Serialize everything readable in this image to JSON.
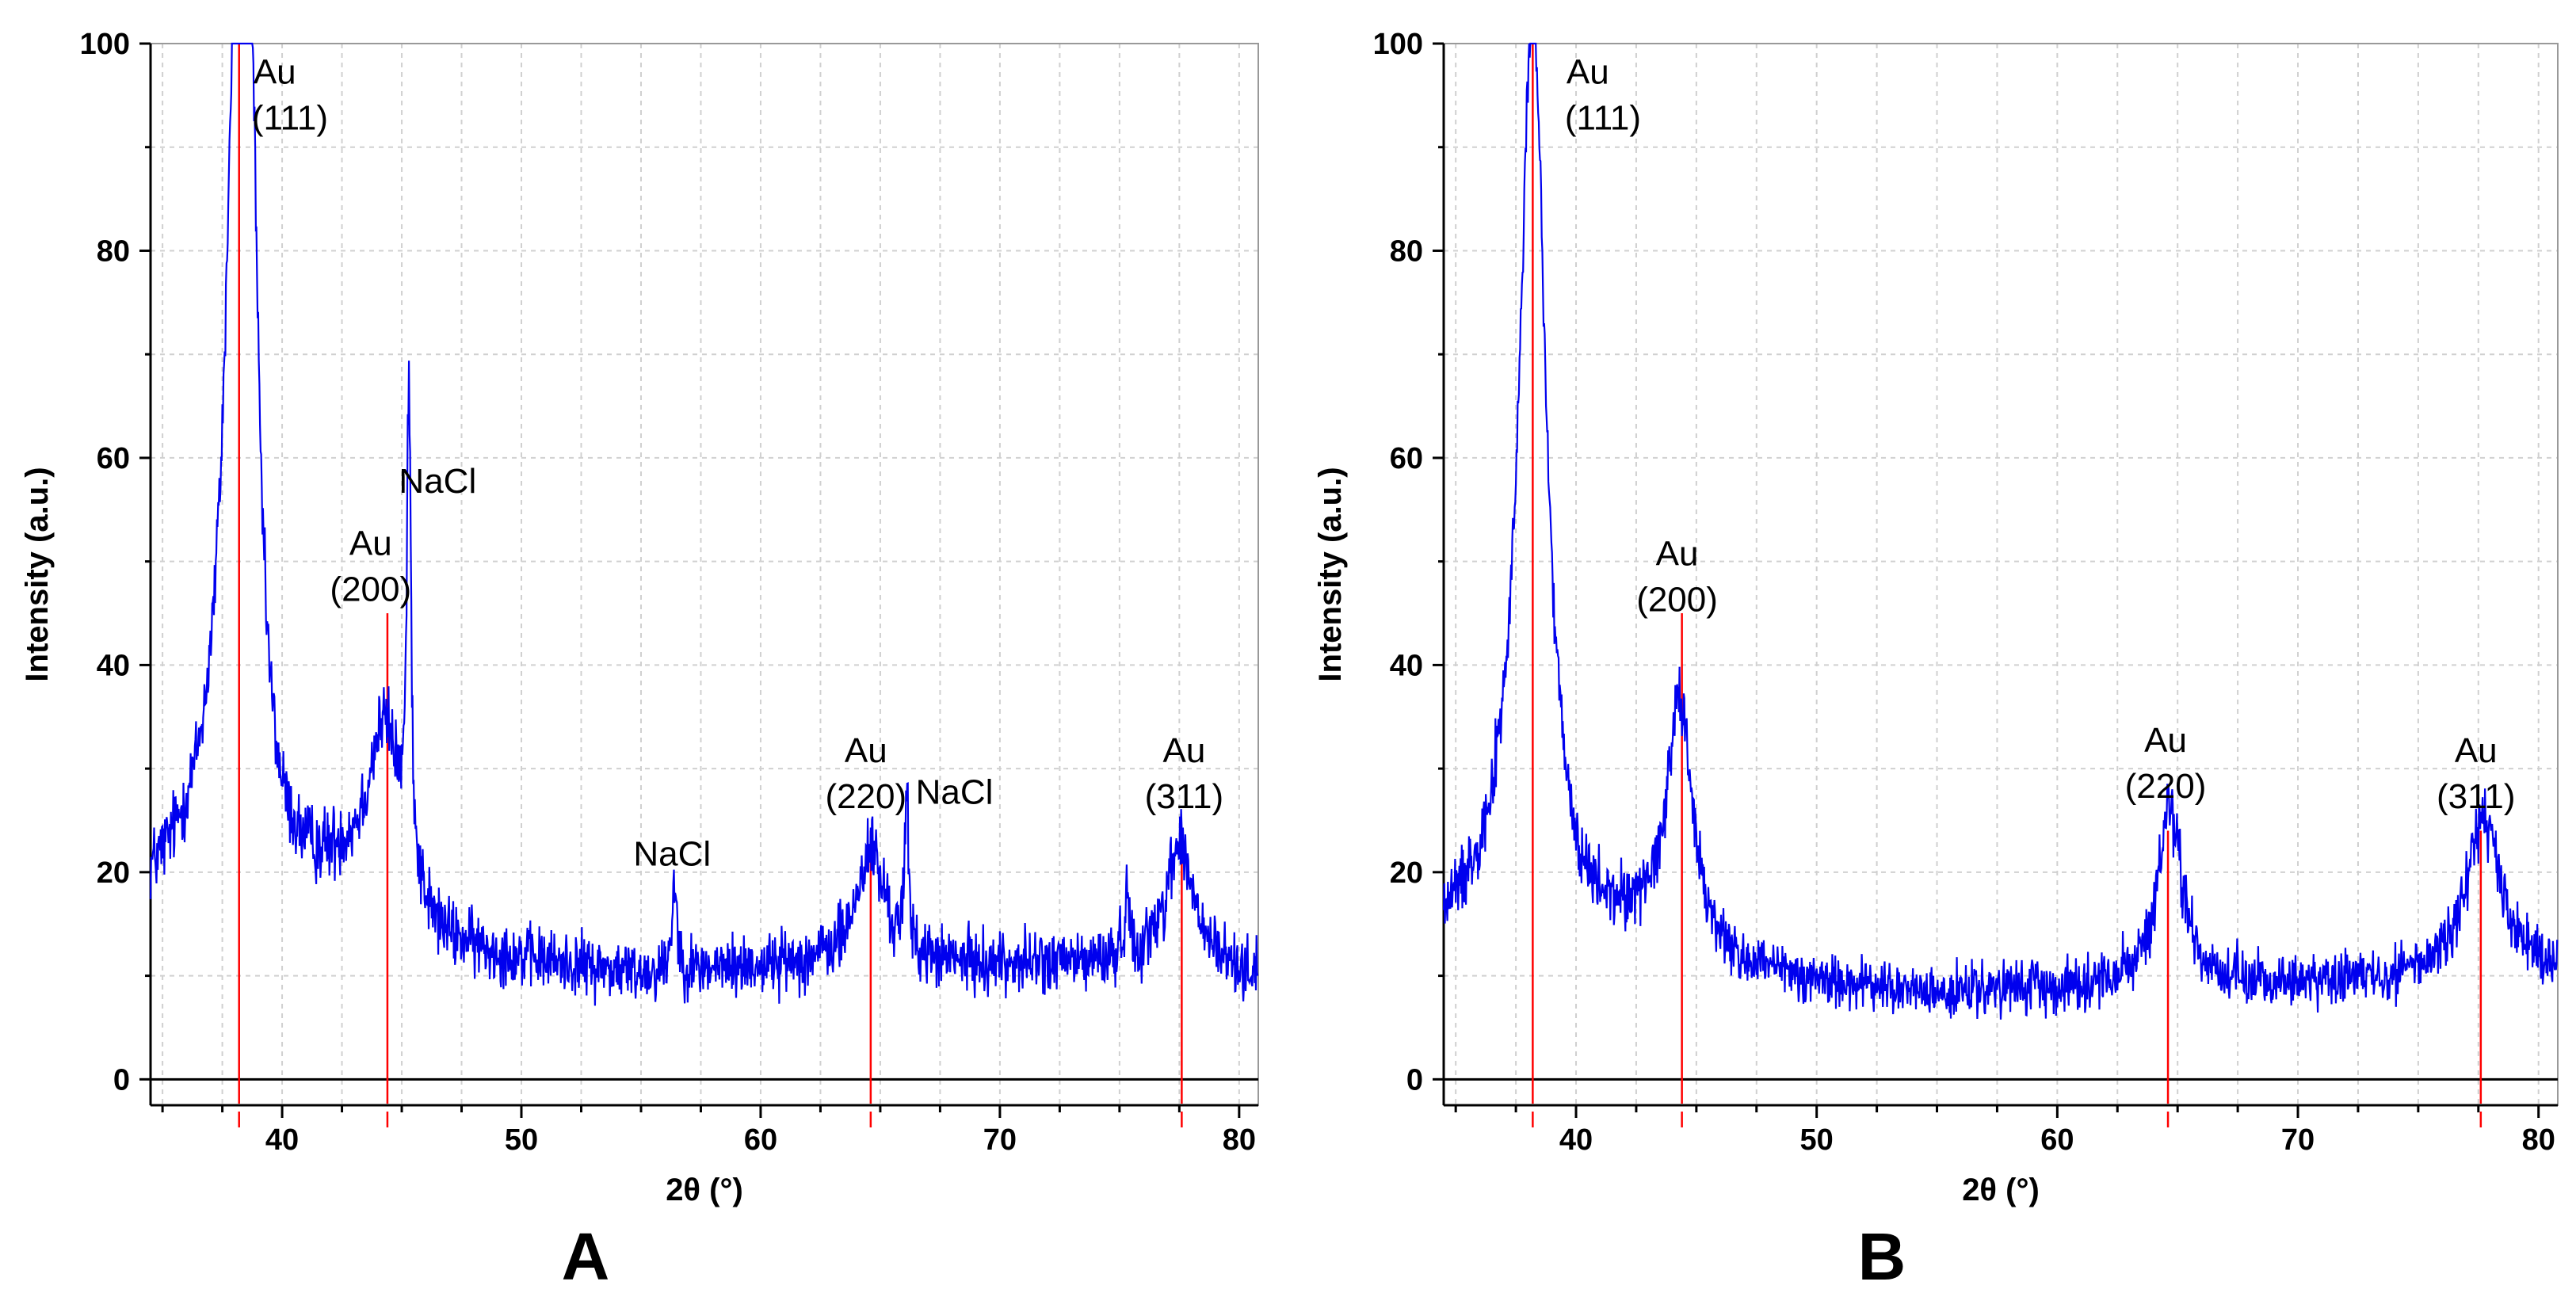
{
  "figure": {
    "panel_letters": [
      "A",
      "B"
    ]
  },
  "colors": {
    "trace": "#0000ee",
    "reference": "#ff0000",
    "grid": "#d0d0d0",
    "axis": "#000000"
  },
  "chart_data": [
    {
      "panel": "A",
      "type": "line",
      "title": "",
      "xlabel": "2θ (°)",
      "ylabel": "Intensity (a.u.)",
      "xlim": [
        34.5,
        80.8
      ],
      "ylim": [
        -2.5,
        100
      ],
      "xticks": [
        40,
        50,
        60,
        70,
        80
      ],
      "yticks": [
        0,
        20,
        40,
        60,
        80,
        100
      ],
      "grid": true,
      "reference_lines": [
        {
          "x": 38.2,
          "height": 100
        },
        {
          "x": 44.4,
          "height": 45
        },
        {
          "x": 64.6,
          "height": 24
        },
        {
          "x": 77.6,
          "height": 24
        }
      ],
      "peaks": [
        {
          "x": 38.2,
          "height": 94,
          "width": 0.6
        },
        {
          "x": 38.7,
          "height": 35,
          "width": 0.3
        },
        {
          "x": 44.3,
          "height": 18,
          "width": 0.9
        },
        {
          "x": 45.3,
          "height": 46,
          "width": 0.1
        },
        {
          "x": 56.4,
          "height": 9,
          "width": 0.12
        },
        {
          "x": 64.6,
          "height": 11,
          "width": 0.7
        },
        {
          "x": 66.1,
          "height": 14,
          "width": 0.1
        },
        {
          "x": 75.3,
          "height": 6,
          "width": 0.12
        },
        {
          "x": 77.5,
          "height": 12,
          "width": 0.7
        }
      ],
      "background": [
        [
          34.5,
          18
        ],
        [
          37.0,
          22
        ],
        [
          40.0,
          17
        ],
        [
          42.5,
          18
        ],
        [
          46.5,
          12
        ],
        [
          55.0,
          10
        ],
        [
          62.0,
          11
        ],
        [
          70.0,
          11
        ],
        [
          76.0,
          11
        ],
        [
          80.8,
          10
        ]
      ],
      "noise": 2.6,
      "annotations": [
        {
          "label": "Au",
          "sub": "(111)",
          "x": 38.8,
          "y": 97.5,
          "anchor": "start"
        },
        {
          "label": "Au",
          "sub": "(200)",
          "x": 43.7,
          "y": 52,
          "anchor": "middle"
        },
        {
          "label": "NaCl",
          "x": 46.5,
          "y": 58,
          "anchor": "middle"
        },
        {
          "label": "NaCl",
          "x": 56.3,
          "y": 22,
          "anchor": "middle"
        },
        {
          "label": "Au",
          "sub": "(220)",
          "x": 64.4,
          "y": 32,
          "anchor": "middle"
        },
        {
          "label": "NaCl",
          "x": 68.1,
          "y": 28,
          "anchor": "middle"
        },
        {
          "label": "Au",
          "sub": "(311)",
          "x": 77.7,
          "y": 32,
          "anchor": "middle"
        }
      ]
    },
    {
      "panel": "B",
      "type": "line",
      "title": "",
      "xlabel": "2θ (°)",
      "ylabel": "Intensity (a.u.)",
      "xlim": [
        34.5,
        80.8
      ],
      "ylim": [
        -2.5,
        100
      ],
      "xticks": [
        40,
        50,
        60,
        70,
        80
      ],
      "yticks": [
        0,
        20,
        40,
        60,
        80,
        100
      ],
      "grid": true,
      "reference_lines": [
        {
          "x": 38.2,
          "height": 100
        },
        {
          "x": 44.4,
          "height": 45
        },
        {
          "x": 64.6,
          "height": 24
        },
        {
          "x": 77.6,
          "height": 24
        }
      ],
      "peaks": [
        {
          "x": 38.2,
          "height": 88,
          "width": 0.65
        },
        {
          "x": 44.3,
          "height": 24,
          "width": 0.6
        },
        {
          "x": 64.7,
          "height": 17,
          "width": 0.6
        },
        {
          "x": 77.7,
          "height": 15,
          "width": 0.85
        }
      ],
      "background": [
        [
          34.5,
          14
        ],
        [
          37.0,
          18
        ],
        [
          40.0,
          13
        ],
        [
          43.0,
          14
        ],
        [
          47.0,
          10
        ],
        [
          55.0,
          8
        ],
        [
          62.0,
          9
        ],
        [
          70.0,
          9
        ],
        [
          76.0,
          10
        ],
        [
          80.8,
          10
        ]
      ],
      "noise": 2.3,
      "annotations": [
        {
          "label": "Au",
          "sub": "(111)",
          "x": 39.6,
          "y": 97.5,
          "anchor": "start"
        },
        {
          "label": "Au",
          "sub": "(200)",
          "x": 44.2,
          "y": 51,
          "anchor": "middle"
        },
        {
          "label": "Au",
          "sub": "(220)",
          "x": 64.5,
          "y": 33,
          "anchor": "middle"
        },
        {
          "label": "Au",
          "sub": "(311)",
          "x": 77.4,
          "y": 32,
          "anchor": "middle"
        }
      ]
    }
  ]
}
